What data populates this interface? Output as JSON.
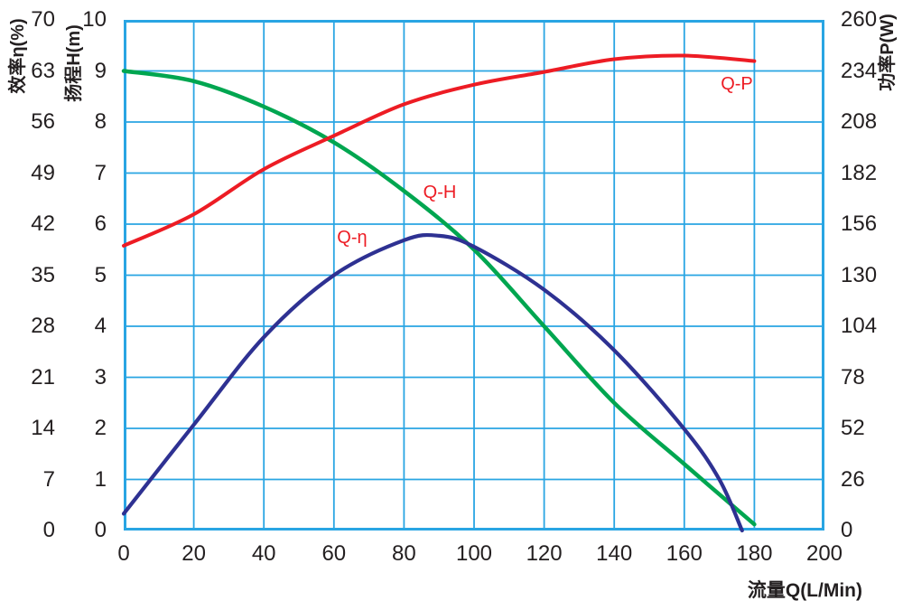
{
  "chart_data": {
    "type": "line",
    "title": "",
    "grid": {
      "on": true,
      "color": "#29A5E3"
    },
    "label_color": "#ED1C24",
    "x_axis": {
      "title": "流量Q(L/Min)",
      "min": 0,
      "max": 200,
      "ticks": [
        0,
        20,
        40,
        60,
        80,
        100,
        120,
        140,
        160,
        180,
        200
      ]
    },
    "left_axis_efficiency": {
      "title": "效率η(%)",
      "min": 0,
      "max": 70,
      "ticks": [
        70,
        63,
        56,
        49,
        42,
        35,
        28,
        21,
        14,
        7,
        0
      ]
    },
    "left_axis_head": {
      "title": "扬程H(m)",
      "min": 0,
      "max": 10,
      "ticks": [
        10,
        9,
        8,
        7,
        6,
        5,
        4,
        3,
        2,
        1,
        0
      ]
    },
    "right_axis_power": {
      "title": "功率P(W)",
      "min": 0,
      "max": 260,
      "ticks": [
        260,
        234,
        208,
        182,
        156,
        130,
        104,
        78,
        52,
        26,
        0
      ]
    },
    "series": [
      {
        "name": "Q-H",
        "axis": "head",
        "color": "#00A650",
        "width": 4.5,
        "points": [
          [
            0,
            9.0
          ],
          [
            20,
            8.8
          ],
          [
            40,
            8.3
          ],
          [
            60,
            7.6
          ],
          [
            80,
            6.65
          ],
          [
            100,
            5.5
          ],
          [
            120,
            4.0
          ],
          [
            140,
            2.5
          ],
          [
            160,
            1.3
          ],
          [
            180,
            0.12
          ]
        ]
      },
      {
        "name": "Q-η",
        "axis": "efficiency",
        "color": "#2E3192",
        "width": 4.2,
        "points": [
          [
            0,
            2.3
          ],
          [
            20,
            14.5
          ],
          [
            40,
            26.5
          ],
          [
            60,
            35.0
          ],
          [
            80,
            39.8
          ],
          [
            90,
            40.4
          ],
          [
            100,
            38.9
          ],
          [
            120,
            33.0
          ],
          [
            140,
            24.7
          ],
          [
            160,
            13.9
          ],
          [
            170,
            7.0
          ],
          [
            176.5,
            0
          ]
        ]
      },
      {
        "name": "Q-P",
        "axis": "power",
        "color": "#ED1C24",
        "width": 4,
        "points": [
          [
            0,
            145
          ],
          [
            20,
            161
          ],
          [
            40,
            184
          ],
          [
            60,
            201
          ],
          [
            80,
            217
          ],
          [
            100,
            227
          ],
          [
            120,
            233.5
          ],
          [
            140,
            240
          ],
          [
            160,
            241.8
          ],
          [
            180,
            239
          ]
        ]
      }
    ],
    "curve_labels": [
      {
        "text": "Q-P",
        "q": 175,
        "value": 227.3,
        "axis": "power"
      },
      {
        "text": "Q-H",
        "q": 90.2,
        "value": 6.62,
        "axis": "head"
      },
      {
        "text": "Q-η",
        "q": 65.2,
        "value": 40.1,
        "axis": "efficiency"
      }
    ]
  }
}
